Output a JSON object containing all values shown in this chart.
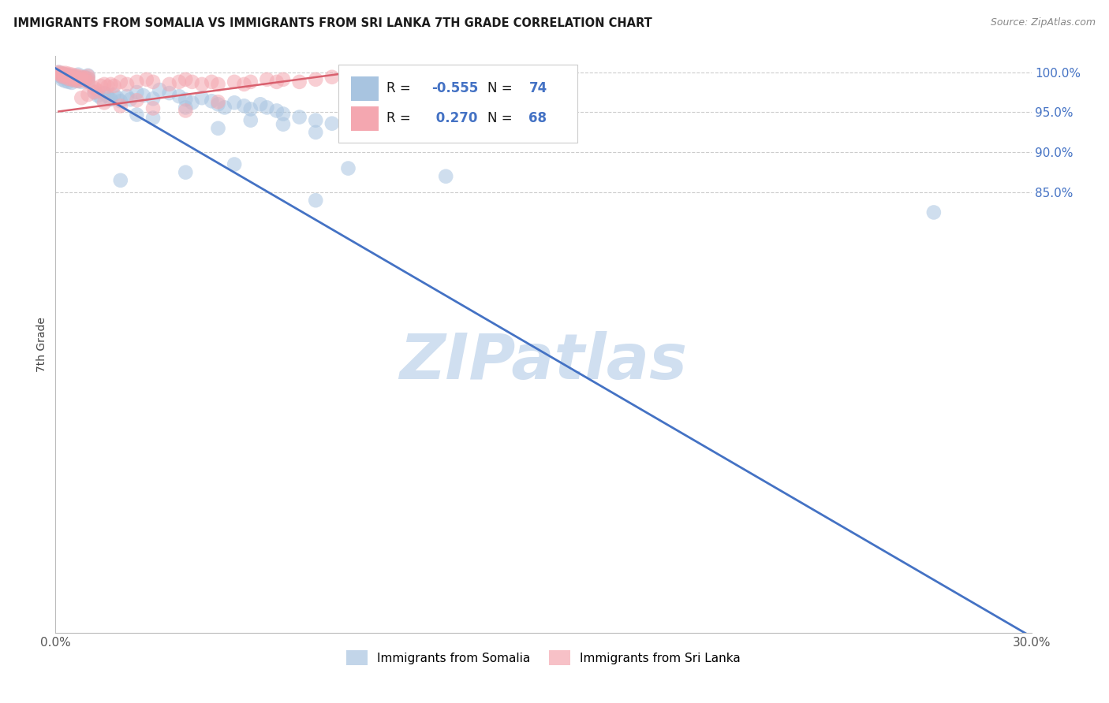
{
  "title": "IMMIGRANTS FROM SOMALIA VS IMMIGRANTS FROM SRI LANKA 7TH GRADE CORRELATION CHART",
  "source": "Source: ZipAtlas.com",
  "ylabel": "7th Grade",
  "xlim": [
    0.0,
    0.3
  ],
  "ylim": [
    0.3,
    1.02
  ],
  "ytick_vals": [
    1.0,
    0.95,
    0.9,
    0.85
  ],
  "ytick_labels": [
    "100.0%",
    "95.0%",
    "90.0%",
    "85.0%"
  ],
  "xtick_vals": [
    0.0,
    0.05,
    0.1,
    0.15,
    0.2,
    0.25,
    0.3
  ],
  "xtick_labels": [
    "0.0%",
    "",
    "",
    "",
    "",
    "",
    "30.0%"
  ],
  "somalia_color": "#a8c4e0",
  "srilanka_color": "#f4a7b0",
  "somalia_line_color": "#4472c4",
  "srilanka_line_color": "#d9606e",
  "watermark": "ZIPatlas",
  "watermark_color": "#d0dff0",
  "background_color": "#ffffff",
  "grid_color": "#cccccc",
  "right_tick_color": "#4472c4",
  "title_color": "#1a1a1a",
  "source_color": "#888888",
  "legend_R_color": "#1a1a1a",
  "legend_N_color": "#4472c4",
  "soma_line_x": [
    0.0,
    0.3
  ],
  "soma_line_y": [
    1.005,
    0.295
  ],
  "sril_line_x": [
    0.001,
    0.095
  ],
  "sril_line_y": [
    0.951,
    1.002
  ]
}
